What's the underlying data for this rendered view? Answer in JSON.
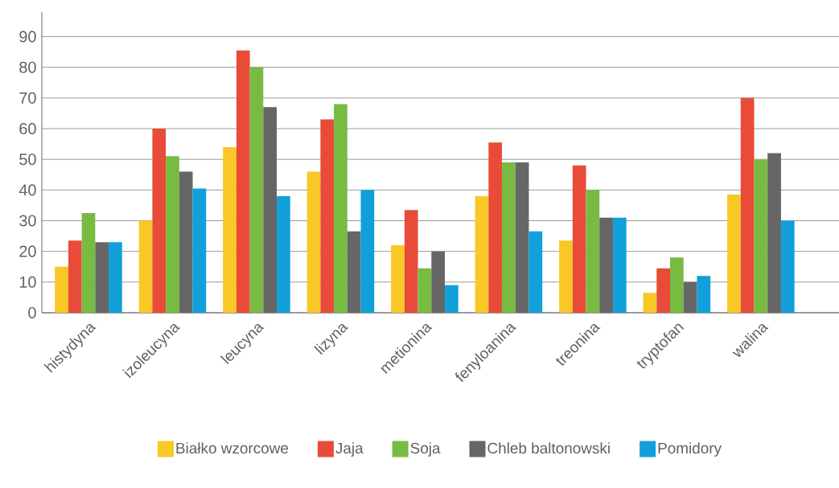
{
  "chart_data": {
    "type": "bar",
    "categories": [
      "histydyna",
      "izoleucyna",
      "leucyna",
      "lizyna",
      "metionina",
      "fenyloanina",
      "treonina",
      "tryptofan",
      "walina"
    ],
    "series": [
      {
        "name": "Białko wzorcowe",
        "color": "#f9c826",
        "values": [
          15,
          30,
          54,
          46,
          22,
          38,
          23.5,
          6.5,
          38.5
        ]
      },
      {
        "name": "Jaja",
        "color": "#e84c38",
        "values": [
          23.5,
          60,
          85.5,
          63,
          33.5,
          55.5,
          48,
          14.5,
          70
        ]
      },
      {
        "name": "Soja",
        "color": "#78bb43",
        "values": [
          32.5,
          51,
          80,
          68,
          14.5,
          49,
          40,
          18,
          50
        ]
      },
      {
        "name": "Chleb baltonowski",
        "color": "#666666",
        "values": [
          23,
          46,
          67,
          26.5,
          20,
          49,
          31,
          10,
          52
        ]
      },
      {
        "name": "Pomidory",
        "color": "#11a0d9",
        "values": [
          23,
          40.5,
          38,
          40,
          9,
          26.5,
          31,
          12,
          30
        ]
      }
    ],
    "ylim": [
      0,
      98
    ],
    "yticks": [
      0,
      10,
      20,
      30,
      40,
      50,
      60,
      70,
      80,
      90
    ],
    "grid": "y",
    "legend": "bottom"
  }
}
